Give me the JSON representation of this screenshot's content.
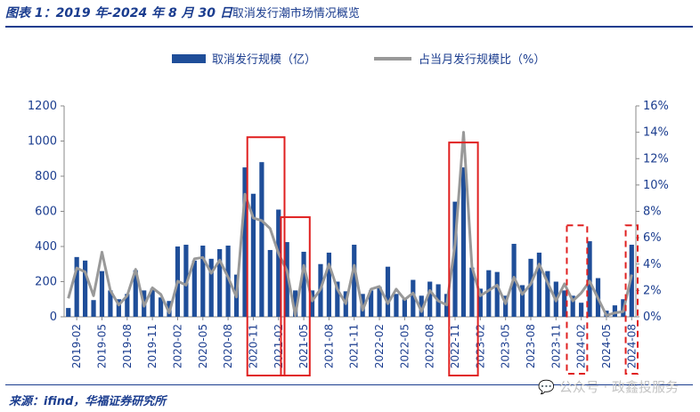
{
  "header": {
    "title": "图表 1：2019 年-2024 年 8 月 30 日",
    "subtitle": "取消发行潮市场情况概览"
  },
  "footer": {
    "source": "来源：ifind，华福证券研究所",
    "watermark": "公众号 · 政鑫投服务"
  },
  "colors": {
    "bar": "#1f4e99",
    "line": "#999999",
    "highlight": "#e02020",
    "rule": "#1b3d8f"
  },
  "chart_data": {
    "type": "bar",
    "categories": [
      "2019-01",
      "2019-02",
      "2019-03",
      "2019-04",
      "2019-05",
      "2019-06",
      "2019-07",
      "2019-08",
      "2019-09",
      "2019-10",
      "2019-11",
      "2019-12",
      "2020-01",
      "2020-02",
      "2020-03",
      "2020-04",
      "2020-05",
      "2020-06",
      "2020-07",
      "2020-08",
      "2020-09",
      "2020-10",
      "2020-11",
      "2020-12",
      "2021-01",
      "2021-02",
      "2021-03",
      "2021-04",
      "2021-05",
      "2021-06",
      "2021-07",
      "2021-08",
      "2021-09",
      "2021-10",
      "2021-11",
      "2021-12",
      "2022-01",
      "2022-02",
      "2022-03",
      "2022-04",
      "2022-05",
      "2022-06",
      "2022-07",
      "2022-08",
      "2022-09",
      "2022-10",
      "2022-11",
      "2022-12",
      "2023-01",
      "2023-02",
      "2023-03",
      "2023-04",
      "2023-05",
      "2023-06",
      "2023-07",
      "2023-08",
      "2023-09",
      "2023-10",
      "2023-11",
      "2023-12",
      "2024-01",
      "2024-02",
      "2024-03",
      "2024-04",
      "2024-05",
      "2024-06",
      "2024-07",
      "2024-08"
    ],
    "x_tick_labels": [
      "2019-02",
      "2019-05",
      "2019-08",
      "2019-11",
      "2020-02",
      "2020-05",
      "2020-08",
      "2020-11",
      "2021-02",
      "2021-05",
      "2021-08",
      "2021-11",
      "2022-02",
      "2022-05",
      "2022-08",
      "2022-11",
      "2023-02",
      "2023-05",
      "2023-08",
      "2023-11",
      "2024-02",
      "2024-05",
      "2024-08"
    ],
    "series": [
      {
        "name": "取消发行规模（亿）",
        "axis": "left",
        "kind": "bar",
        "values": [
          50,
          340,
          320,
          95,
          260,
          150,
          100,
          130,
          265,
          150,
          160,
          110,
          90,
          400,
          410,
          320,
          405,
          330,
          385,
          405,
          240,
          850,
          700,
          880,
          380,
          610,
          425,
          150,
          370,
          150,
          300,
          365,
          200,
          145,
          410,
          130,
          150,
          170,
          285,
          130,
          100,
          210,
          120,
          200,
          185,
          130,
          655,
          850,
          280,
          160,
          265,
          255,
          120,
          415,
          180,
          330,
          365,
          260,
          200,
          150,
          120,
          80,
          430,
          220,
          35,
          65,
          100,
          410
        ]
      },
      {
        "name": "占当月发行规模比（%）",
        "axis": "right",
        "kind": "line",
        "values": [
          1.4,
          3.7,
          3.4,
          1.6,
          4.9,
          2.0,
          0.9,
          1.6,
          3.6,
          0.8,
          2.2,
          1.7,
          0.3,
          2.7,
          2.4,
          4.4,
          4.5,
          3.3,
          4.3,
          3.0,
          1.5,
          9.3,
          7.5,
          7.3,
          6.7,
          4.8,
          3.5,
          0.1,
          3.9,
          1.2,
          2.1,
          4.0,
          2.1,
          1.0,
          3.9,
          0.5,
          2.1,
          2.3,
          1.0,
          2.1,
          1.3,
          1.8,
          0.4,
          2.0,
          1.2,
          0.9,
          5.5,
          14.0,
          3.8,
          1.6,
          2.0,
          2.4,
          1.0,
          3.0,
          1.7,
          2.5,
          4.0,
          2.6,
          1.2,
          2.5,
          1.2,
          1.8,
          2.7,
          1.4,
          0.1,
          0.3,
          0.4,
          3.2
        ]
      }
    ],
    "y_left": {
      "min": 0,
      "max": 1200,
      "ticks": [
        "0",
        "200",
        "400",
        "600",
        "800",
        "1000",
        "1200"
      ]
    },
    "y_right": {
      "min": 0,
      "max": 16,
      "ticks": [
        "0%",
        "2%",
        "4%",
        "6%",
        "8%",
        "10%",
        "12%",
        "14%",
        "16%"
      ]
    },
    "legend_position": "top-center",
    "grid": false,
    "highlights": [
      {
        "from": "2020-11",
        "to": "2021-02",
        "style": "solid"
      },
      {
        "from": "2021-03",
        "to": "2021-05",
        "style": "solid"
      },
      {
        "from": "2022-11",
        "to": "2023-01",
        "style": "solid"
      },
      {
        "from": "2024-01",
        "to": "2024-02",
        "style": "dashed"
      },
      {
        "from": "2024-08",
        "to": "2024-08",
        "style": "dashed"
      }
    ]
  }
}
